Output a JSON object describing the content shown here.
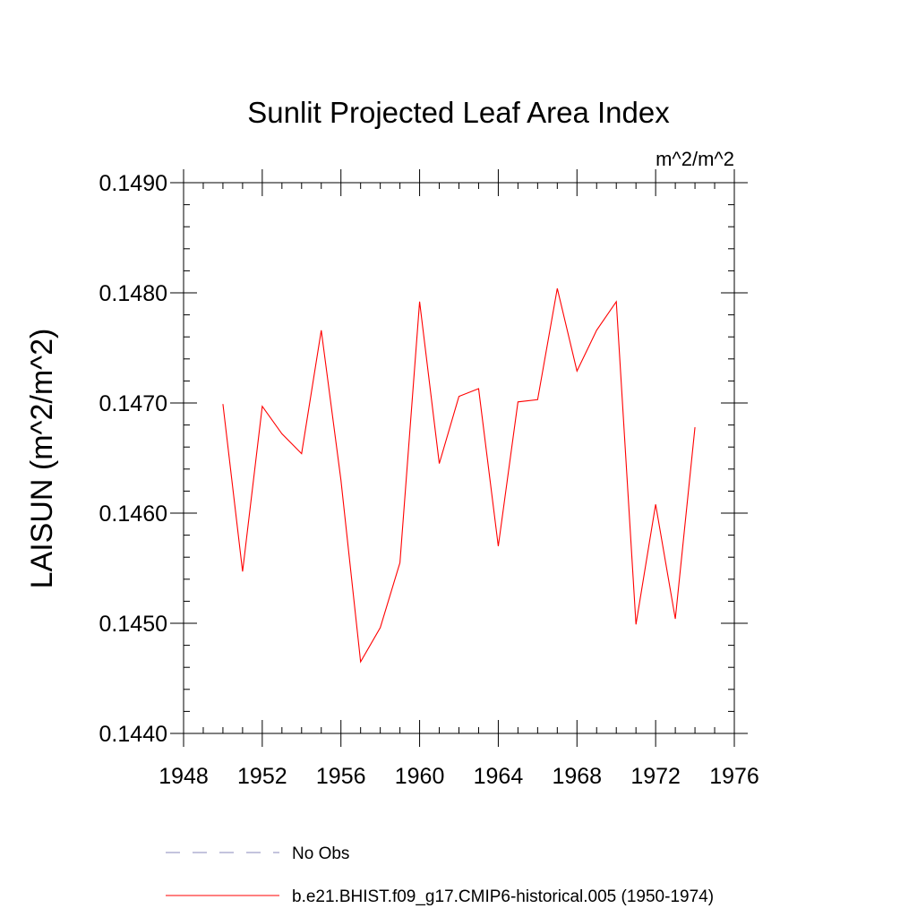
{
  "chart_data": {
    "type": "line",
    "title": "Sunlit Projected Leaf Area Index",
    "units_label": "m^2/m^2",
    "ylabel": "LAISUN  (m^2/m^2)",
    "xlabel": "",
    "xlim": [
      1948,
      1976
    ],
    "ylim": [
      0.144,
      0.149
    ],
    "x_ticks": [
      1948,
      1952,
      1956,
      1960,
      1964,
      1968,
      1972,
      1976
    ],
    "x_tick_labels": [
      "1948",
      "1952",
      "1956",
      "1960",
      "1964",
      "1968",
      "1972",
      "1976"
    ],
    "y_ticks": [
      0.144,
      0.145,
      0.146,
      0.147,
      0.148,
      0.149
    ],
    "y_tick_labels": [
      "0.1440",
      "0.1450",
      "0.1460",
      "0.1470",
      "0.1480",
      "0.1490"
    ],
    "x_minor_step": 1,
    "y_minor_step": 0.0002,
    "grid": false,
    "legend_position": "bottom",
    "series": [
      {
        "name": "b.e21.BHIST.f09_g17.CMIP6-historical.005 (1950-1974)",
        "color": "#ff0000",
        "style": "solid",
        "x": [
          1950,
          1951,
          1952,
          1953,
          1954,
          1955,
          1956,
          1957,
          1958,
          1959,
          1960,
          1961,
          1962,
          1963,
          1964,
          1965,
          1966,
          1967,
          1968,
          1969,
          1970,
          1971,
          1972,
          1973,
          1974
        ],
        "values": [
          0.14699,
          0.14547,
          0.14697,
          0.14672,
          0.14654,
          0.14766,
          0.1463,
          0.14465,
          0.14496,
          0.14555,
          0.14792,
          0.14645,
          0.14706,
          0.14713,
          0.1457,
          0.14701,
          0.14703,
          0.14804,
          0.14729,
          0.14766,
          0.14792,
          0.14499,
          0.14608,
          0.14504,
          0.14678
        ]
      }
    ],
    "legend": [
      {
        "label": "No Obs",
        "color": "#8888bb",
        "style": "dashed"
      },
      {
        "label": "b.e21.BHIST.f09_g17.CMIP6-historical.005 (1950-1974)",
        "color": "#ff0000",
        "style": "solid"
      }
    ]
  }
}
